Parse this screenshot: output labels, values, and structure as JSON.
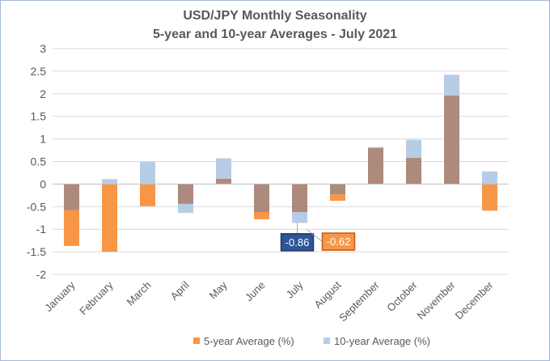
{
  "chart_data": {
    "type": "bar",
    "title_line1": "USD/JPY Monthly  Seasonality",
    "title_line2": "5-year  and  10-year Averages  - July  2021",
    "categories": [
      "January",
      "February",
      "March",
      "April",
      "May",
      "June",
      "July",
      "August",
      "September",
      "October",
      "November",
      "December"
    ],
    "series": [
      {
        "name": "5-year Average (%)",
        "values": [
          -1.37,
          -1.5,
          -0.49,
          -0.44,
          0.12,
          -0.78,
          -0.62,
          -0.37,
          0.8,
          0.58,
          1.96,
          -0.59
        ]
      },
      {
        "name": "10-year Average (%)",
        "values": [
          -0.58,
          0.11,
          0.49,
          -0.64,
          0.57,
          -0.62,
          -0.86,
          -0.23,
          0.82,
          0.98,
          2.42,
          0.28
        ]
      }
    ],
    "yticks": [
      "3",
      "2.5",
      "2",
      "1.5",
      "1",
      "0.5",
      "0",
      "-0.5",
      "-1",
      "-1.5",
      "-2"
    ],
    "ylim": [
      -2,
      3
    ],
    "grid": true,
    "legend_position": "bottom",
    "colors": {
      "five_year": "#f79646",
      "ten_year": "#b7cce5",
      "overlap": "#ad8a7b",
      "gridline": "#d9d9d9"
    },
    "annotations": [
      {
        "category": "July",
        "label": "-0.86",
        "fill": "#2f5597",
        "border": "#1f3864"
      },
      {
        "category": "July",
        "label": "-0.62",
        "fill": "#f79646",
        "border": "#c55a11"
      }
    ]
  }
}
